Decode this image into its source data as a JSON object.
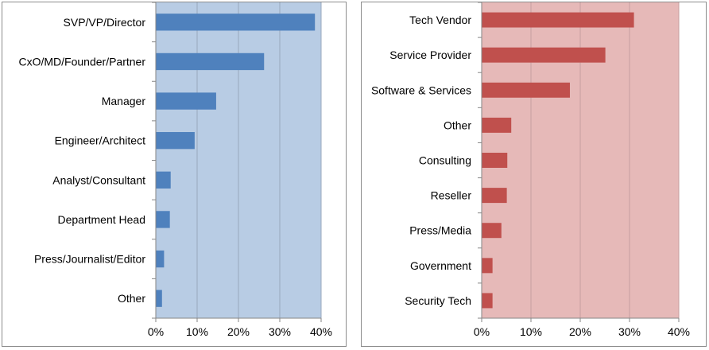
{
  "chart_data": [
    {
      "type": "bar",
      "orientation": "horizontal",
      "categories": [
        "SVP/VP/Director",
        "CxO/MD/Founder/Partner",
        "Manager",
        "Engineer/Architect",
        "Analyst/Consultant",
        "Department Head",
        "Press/Journalist/Editor",
        "Other"
      ],
      "values": [
        38.5,
        26.2,
        14.6,
        9.4,
        3.6,
        3.4,
        2.0,
        1.5
      ],
      "unit": "%",
      "xlim": [
        0,
        40
      ],
      "xticks": [
        "0%",
        "10%",
        "20%",
        "30%",
        "40%"
      ],
      "grid": true,
      "colors": {
        "bar": "#4f81bd",
        "plot_background": "#b8cce4",
        "grid": "#98a8bc"
      }
    },
    {
      "type": "bar",
      "orientation": "horizontal",
      "categories": [
        "Tech Vendor",
        "Service Provider",
        "Software & Services",
        "Other",
        "Consulting",
        "Reseller",
        "Press/Media",
        "Government",
        "Security Tech"
      ],
      "values": [
        30.9,
        25.1,
        17.9,
        6.0,
        5.2,
        5.1,
        4.0,
        2.2,
        2.2
      ],
      "unit": "%",
      "xlim": [
        0,
        40
      ],
      "xticks": [
        "0%",
        "10%",
        "20%",
        "30%",
        "40%"
      ],
      "grid": true,
      "colors": {
        "bar": "#c0504d",
        "plot_background": "#e6b9b8",
        "grid": "#c7a0a0"
      }
    }
  ]
}
